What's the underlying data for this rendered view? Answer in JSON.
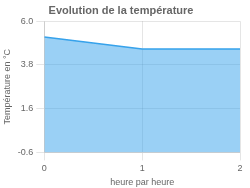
{
  "chart_data": {
    "type": "area",
    "title": "Evolution de la température",
    "xlabel": "heure par heure",
    "ylabel": "Température en °C",
    "x": [
      0,
      0.083,
      0.167,
      0.25,
      0.333,
      0.417,
      0.5,
      0.583,
      0.667,
      0.75,
      0.833,
      0.917,
      1.0,
      1.083,
      1.167,
      1.25,
      1.333,
      1.417,
      1.5,
      1.583,
      1.667,
      1.75,
      1.833,
      1.917,
      2.0
    ],
    "values": [
      5.2,
      5.15,
      5.1,
      5.05,
      5.0,
      4.95,
      4.9,
      4.85,
      4.8,
      4.75,
      4.7,
      4.65,
      4.6,
      4.6,
      4.6,
      4.6,
      4.6,
      4.6,
      4.6,
      4.6,
      4.6,
      4.6,
      4.6,
      4.6,
      4.6
    ],
    "xlim": [
      0,
      2
    ],
    "xticks": [
      0,
      1,
      2
    ],
    "ylim": [
      -0.6,
      6.0
    ],
    "yticks": [
      -0.6,
      1.6,
      3.8,
      {
        "value": 6.0,
        "label": "6.0"
      }
    ],
    "grid": true
  }
}
